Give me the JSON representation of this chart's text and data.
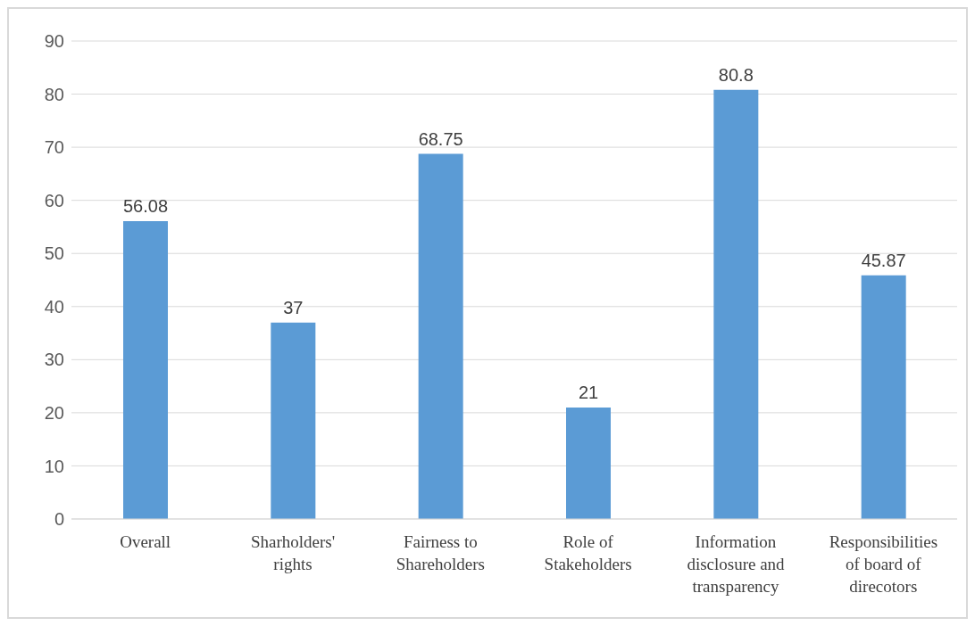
{
  "chart_data": {
    "type": "bar",
    "categories": [
      "Overall",
      "Sharholders' rights",
      "Fairness to Shareholders",
      "Role of Stakeholders",
      "Information disclosure and transparency",
      "Responsibilities of board of direcotors"
    ],
    "values": [
      56.08,
      37,
      68.75,
      21,
      80.8,
      45.87
    ],
    "color": "#5b9bd5",
    "ylim": [
      0,
      90
    ],
    "yticks": [
      0,
      10,
      20,
      30,
      40,
      50,
      60,
      70,
      80,
      90
    ],
    "grid": "y",
    "data_labels": true
  }
}
